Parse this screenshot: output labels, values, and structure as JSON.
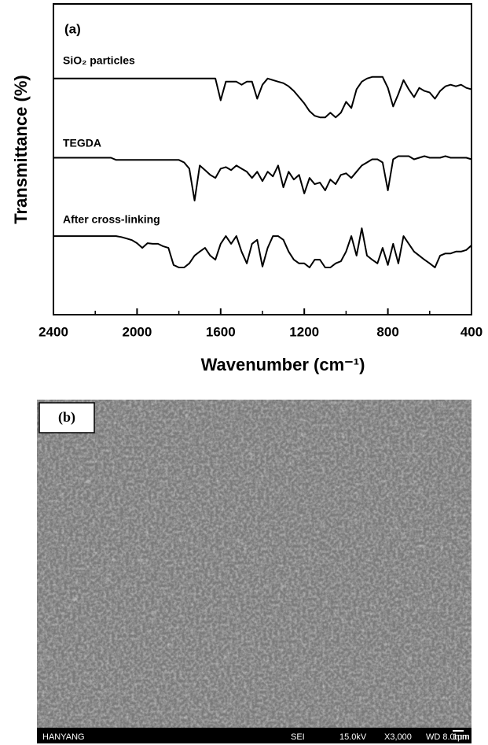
{
  "chart_data": {
    "type": "line",
    "panel_label": "(a)",
    "x_label": "Wavenumber (cm⁻¹)",
    "y_label": "Transmittance (%)",
    "xlim": [
      2400,
      400
    ],
    "xticks": [
      2400,
      2000,
      1600,
      1200,
      800,
      400
    ],
    "ylim": [
      0,
      100
    ],
    "x": [
      2400,
      2375,
      2350,
      2325,
      2300,
      2275,
      2250,
      2225,
      2200,
      2175,
      2150,
      2125,
      2100,
      2075,
      2050,
      2025,
      2000,
      1975,
      1950,
      1925,
      1900,
      1875,
      1850,
      1825,
      1800,
      1775,
      1750,
      1725,
      1700,
      1675,
      1650,
      1625,
      1600,
      1575,
      1550,
      1525,
      1500,
      1475,
      1450,
      1425,
      1400,
      1375,
      1350,
      1325,
      1300,
      1275,
      1250,
      1225,
      1200,
      1175,
      1150,
      1125,
      1100,
      1075,
      1050,
      1025,
      1000,
      975,
      950,
      925,
      900,
      875,
      850,
      825,
      800,
      775,
      750,
      725,
      700,
      675,
      650,
      625,
      600,
      575,
      550,
      525,
      500,
      475,
      450,
      425,
      400
    ],
    "series": [
      {
        "name": "SiO₂ particles",
        "color": "#000000",
        "values": [
          76,
          76,
          76,
          76,
          76,
          76,
          76,
          76,
          76,
          76,
          76,
          76,
          76,
          76,
          76,
          76,
          76,
          76,
          76,
          76,
          76,
          76,
          76,
          76,
          76,
          76,
          76,
          76,
          76,
          76,
          76,
          76,
          69,
          75,
          75,
          75,
          74,
          75,
          75,
          69.5,
          74,
          76,
          75.5,
          75,
          74.5,
          73.5,
          72,
          70,
          68,
          65.5,
          64,
          63.5,
          63.5,
          65,
          63.5,
          65,
          68.5,
          66.5,
          72.5,
          75,
          76,
          76.5,
          76.5,
          76.5,
          73,
          67,
          71,
          75.5,
          72.5,
          70,
          73,
          72,
          71.5,
          69.5,
          72,
          73.5,
          74,
          73.5,
          74,
          73,
          72.5
        ]
      },
      {
        "name": "TEGDA",
        "color": "#000000",
        "values": [
          50.5,
          50.5,
          50.5,
          50.5,
          50.5,
          50.5,
          50.5,
          50.5,
          50.5,
          50.5,
          50.5,
          50.5,
          49.8,
          49.8,
          49.8,
          49.8,
          49.8,
          49.8,
          49.8,
          49.8,
          49.8,
          49.8,
          49.8,
          49.8,
          49.8,
          49,
          47,
          36.7,
          48,
          46.5,
          45,
          44,
          47,
          47.5,
          46.5,
          48,
          47,
          46,
          44,
          46,
          43,
          46,
          44.5,
          48,
          41,
          46,
          43.5,
          45,
          39,
          44,
          42,
          42.5,
          40,
          43.5,
          42,
          45,
          45.5,
          44,
          46,
          48,
          49,
          50,
          50,
          49,
          40,
          50,
          51,
          51,
          51,
          50,
          50.5,
          51,
          50.5,
          50.5,
          50.5,
          51,
          50.5,
          50.5,
          50.5,
          50.5,
          50
        ]
      },
      {
        "name": "After cross-linking",
        "color": "#000000",
        "values": [
          25.3,
          25.3,
          25.3,
          25.3,
          25.3,
          25.3,
          25.3,
          25.3,
          25.3,
          25.3,
          25.3,
          25.3,
          25.3,
          25,
          24.5,
          24,
          23,
          21.5,
          23,
          22.8,
          22.8,
          22,
          21.5,
          16,
          15.2,
          15.2,
          16.5,
          19,
          20.3,
          21.5,
          19,
          17.7,
          22.8,
          25.3,
          22.8,
          25.3,
          20.3,
          16.5,
          22.8,
          24.1,
          15.5,
          21.5,
          25.3,
          25.3,
          24.1,
          20.3,
          17.7,
          16.5,
          16.5,
          15.2,
          17.7,
          17.7,
          15.2,
          15.2,
          16.5,
          17.2,
          20.3,
          25.3,
          19,
          27.8,
          19,
          17.7,
          16.5,
          21.5,
          16,
          22.8,
          16.5,
          25.3,
          22.8,
          20.3,
          19,
          17.7,
          16.5,
          15.2,
          19,
          19.7,
          19.7,
          20.3,
          20.3,
          20.8,
          22.3
        ]
      }
    ]
  },
  "sem_image": {
    "panel_label": "(b)",
    "info": [
      "HANYANG",
      "SEI",
      "15.0kV",
      "X3,000",
      "WD 8.0mm",
      "1μm"
    ]
  }
}
